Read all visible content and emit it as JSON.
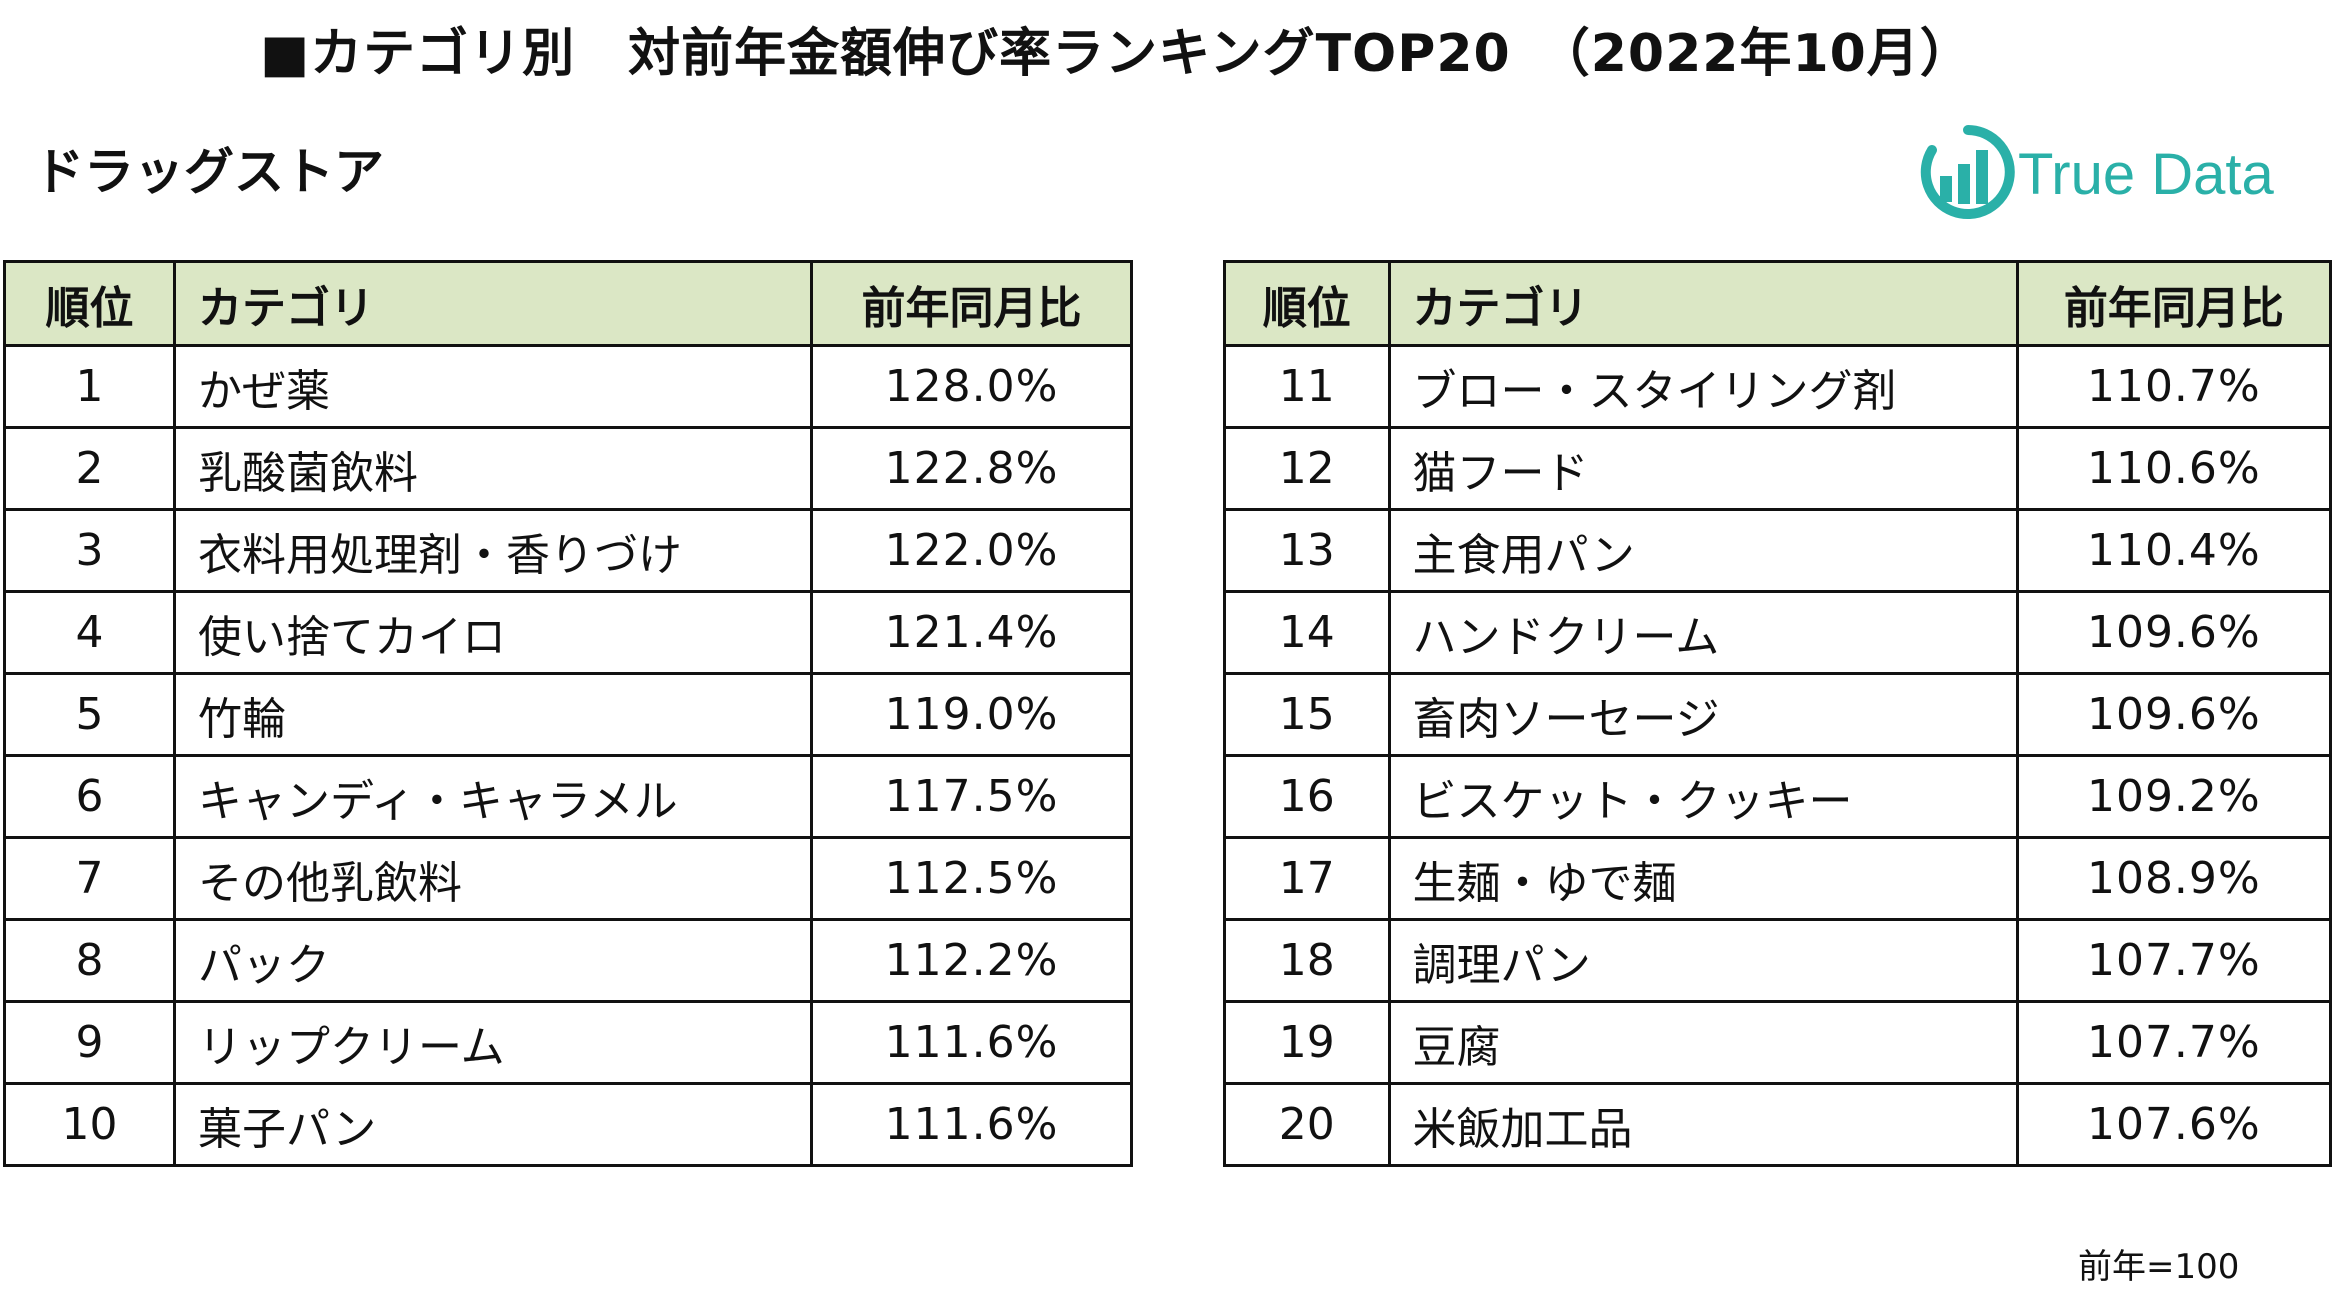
{
  "title": "■カテゴリ別　対前年金額伸び率ランキングTOP20　（2022年10月）",
  "subtitle": "ドラッグストア",
  "logo": {
    "text": "True Data",
    "icon": "bar-chart-circle-icon",
    "color": "#2ab0a8"
  },
  "header_color": "#dbe7c5",
  "columns": {
    "rank": "順位",
    "category": "カテゴリ",
    "value": "前年同月比"
  },
  "left_rows": [
    {
      "rank": "1",
      "category": "かぜ薬",
      "value": "128.0%"
    },
    {
      "rank": "2",
      "category": "乳酸菌飲料",
      "value": "122.8%"
    },
    {
      "rank": "3",
      "category": "衣料用処理剤・香りづけ",
      "value": "122.0%"
    },
    {
      "rank": "4",
      "category": "使い捨てカイロ",
      "value": "121.4%"
    },
    {
      "rank": "5",
      "category": "竹輪",
      "value": "119.0%"
    },
    {
      "rank": "6",
      "category": "キャンディ・キャラメル",
      "value": "117.5%"
    },
    {
      "rank": "7",
      "category": "その他乳飲料",
      "value": "112.5%"
    },
    {
      "rank": "8",
      "category": "パック",
      "value": "112.2%"
    },
    {
      "rank": "9",
      "category": "リップクリーム",
      "value": "111.6%"
    },
    {
      "rank": "10",
      "category": "菓子パン",
      "value": "111.6%"
    }
  ],
  "right_rows": [
    {
      "rank": "11",
      "category": "ブロー・スタイリング剤",
      "value": "110.7%"
    },
    {
      "rank": "12",
      "category": "猫フード",
      "value": "110.6%"
    },
    {
      "rank": "13",
      "category": "主食用パン",
      "value": "110.4%"
    },
    {
      "rank": "14",
      "category": "ハンドクリーム",
      "value": "109.6%"
    },
    {
      "rank": "15",
      "category": "畜肉ソーセージ",
      "value": "109.6%"
    },
    {
      "rank": "16",
      "category": "ビスケット・クッキー",
      "value": "109.2%"
    },
    {
      "rank": "17",
      "category": "生麺・ゆで麺",
      "value": "108.9%"
    },
    {
      "rank": "18",
      "category": "調理パン",
      "value": "107.7%"
    },
    {
      "rank": "19",
      "category": "豆腐",
      "value": "107.7%"
    },
    {
      "rank": "20",
      "category": "米飯加工品",
      "value": "107.6%"
    }
  ],
  "footnote": "前年=100"
}
